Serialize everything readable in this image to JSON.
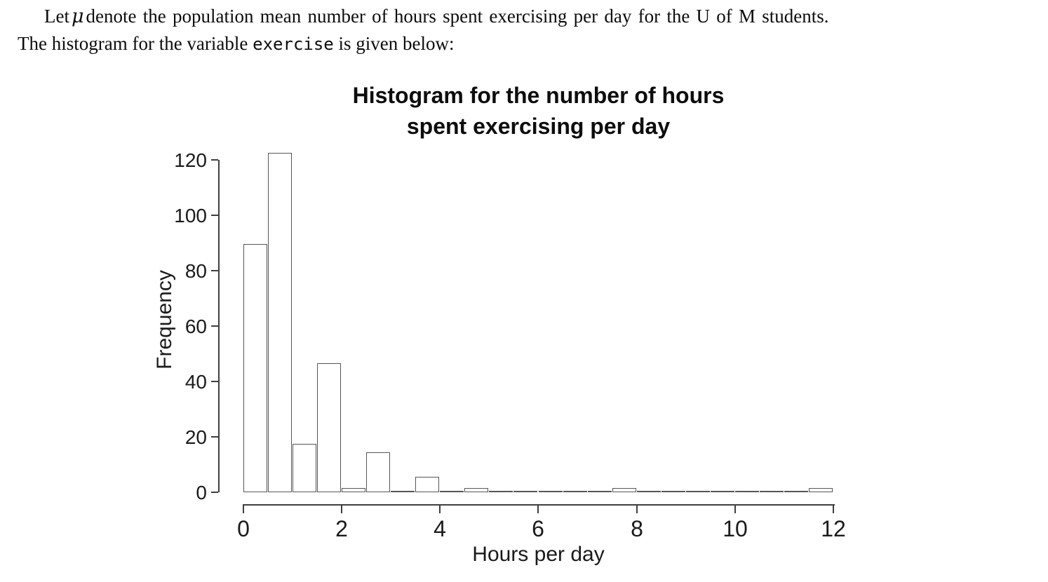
{
  "problem": {
    "line1_prefix": "Let",
    "mu_symbol": "μ",
    "line1_suffix": "denote the population mean number of hours spent exercising per day for the U of M students.",
    "line2_prefix": "The histogram for the variable ",
    "variable_name": "exercise",
    "line2_suffix": " is given below:"
  },
  "chart_data": {
    "type": "bar",
    "subtype": "histogram",
    "title_line1": "Histogram for the number of hours",
    "title_line2": "spent exercising per day",
    "xlabel": "Hours per day",
    "ylabel": "Frequency",
    "bin_start": 0,
    "bin_width": 0.5,
    "xlim": [
      0,
      12
    ],
    "ylim": [
      0,
      120
    ],
    "x_ticks": [
      0,
      2,
      4,
      6,
      8,
      10,
      12
    ],
    "y_ticks": [
      0,
      20,
      40,
      60,
      80,
      100,
      120
    ],
    "frequencies": [
      89,
      122,
      17,
      46,
      1,
      14,
      0,
      5,
      0,
      1,
      0,
      0,
      0,
      0,
      0,
      1,
      0,
      0,
      0,
      0,
      0,
      0,
      0,
      1
    ],
    "grid": "off",
    "legend": "none",
    "bar_fill": "#ffffff",
    "bar_border": "#565656",
    "axis_color": "#3f3f3f",
    "text_color": "#1a1a1a"
  }
}
